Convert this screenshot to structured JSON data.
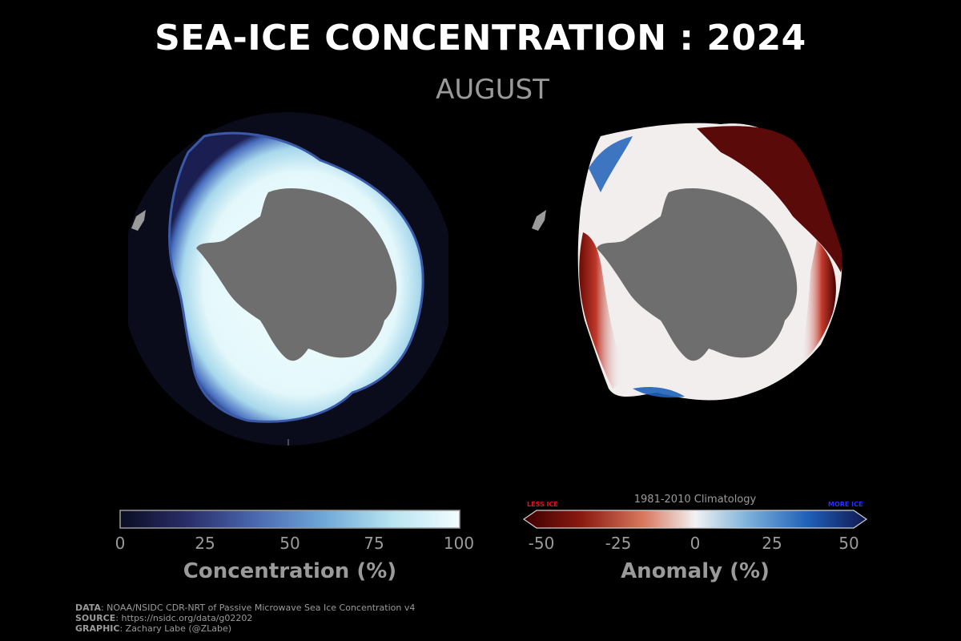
{
  "header": {
    "title": "SEA-ICE CONCENTRATION : 2024",
    "subtitle": "AUGUST"
  },
  "left_map": {
    "colorbar": {
      "title": "Concentration (%)",
      "ticks": [
        "0",
        "25",
        "50",
        "75",
        "100"
      ],
      "colors": [
        "#0b0d22",
        "#2a2e6a",
        "#4a68b0",
        "#6fa8d8",
        "#b8e4f0",
        "#f2fdff"
      ]
    }
  },
  "right_map": {
    "colorbar": {
      "title": "Anomaly (%)",
      "ticks": [
        "-50",
        "-25",
        "0",
        "25",
        "50"
      ],
      "reference": "1981-2010 Climatology",
      "less_label": "LESS ICE",
      "more_label": "MORE ICE",
      "colors": [
        "#3d0000",
        "#8b1a10",
        "#d8785e",
        "#f2f2f2",
        "#7fb3db",
        "#1f5fb8",
        "#101850"
      ]
    }
  },
  "credits": {
    "data_label": "DATA",
    "data_text": ": NOAA/NSIDC CDR-NRT of Passive Microwave Sea Ice Concentration v4",
    "source_label": "SOURCE",
    "source_text": ": https://nsidc.org/data/g02202",
    "graphic_label": "GRAPHIC",
    "graphic_text": ": Zachary Labe (@ZLabe)"
  },
  "colors": {
    "background": "#000000",
    "land": "#6e6e6e",
    "ocean_disk": "#0a0c1c",
    "text_gray": "#9a9a9a"
  }
}
